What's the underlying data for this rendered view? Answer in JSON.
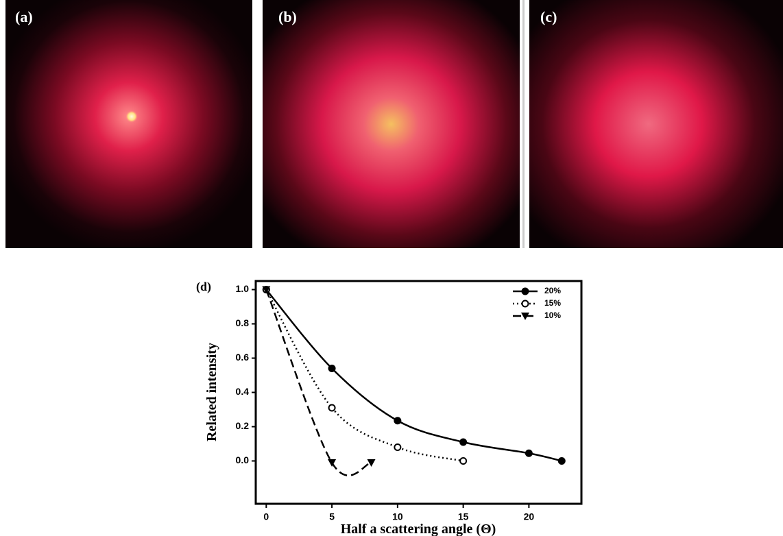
{
  "panels": [
    {
      "label": "(a)"
    },
    {
      "label": "(b)"
    },
    {
      "label": "(c)"
    }
  ],
  "chart_data": {
    "type": "line",
    "panel_label": "(d)",
    "x_label": "Half a scattering angle (Θ)",
    "y_label": "Related intensity",
    "xlim": [
      -0.8,
      24
    ],
    "ylim": [
      -0.25,
      1.05
    ],
    "xticks": [
      0,
      5,
      10,
      15,
      20
    ],
    "yticks": [
      {
        "value": 0,
        "label": "0.0"
      },
      0.2,
      0.4,
      0.6,
      0.8,
      {
        "value": 1,
        "label": "1.0"
      }
    ],
    "legend": "top-right",
    "series": [
      {
        "name": "20%",
        "color": "#000000",
        "dash": "solid",
        "marker": "filled-circle",
        "x": [
          0,
          5,
          10,
          15,
          20,
          22.5
        ],
        "values": [
          1.0,
          0.54,
          0.235,
          0.11,
          0.045,
          0.0
        ]
      },
      {
        "name": "15%",
        "color": "#000000",
        "dash": "dotted",
        "marker": "open-circle",
        "x": [
          0,
          5,
          10,
          15
        ],
        "values": [
          1.0,
          0.31,
          0.08,
          0.0
        ]
      },
      {
        "name": "10%",
        "color": "#000000",
        "dash": "dashed",
        "marker": "triangle-down",
        "x": [
          0,
          5,
          8
        ],
        "values": [
          1.0,
          -0.01,
          -0.01
        ]
      }
    ]
  }
}
